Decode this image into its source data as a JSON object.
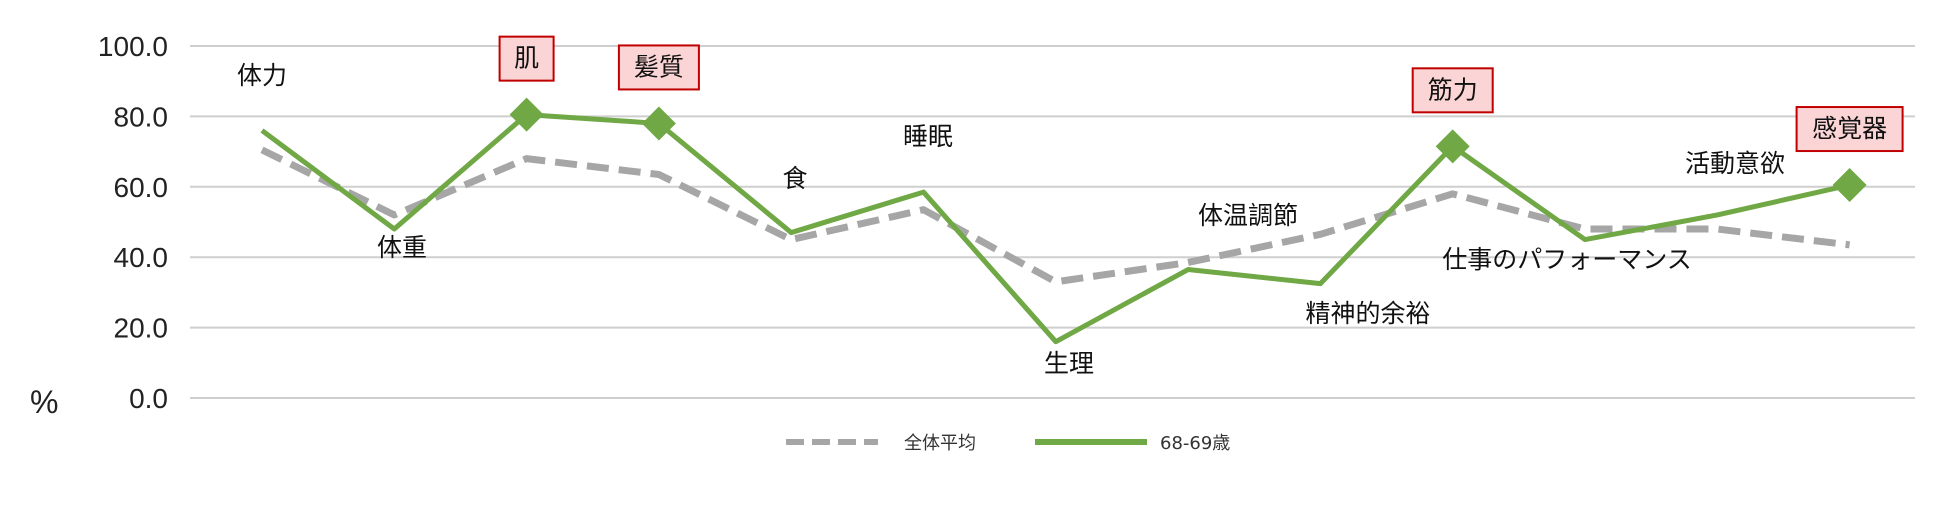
{
  "chart_data": {
    "type": "line",
    "ylabel": "%",
    "ylim": [
      0,
      100
    ],
    "y_ticks": [
      "0.0",
      "20.0",
      "40.0",
      "60.0",
      "80.0",
      "100.0"
    ],
    "grid": true,
    "legend_position": "bottom",
    "categories": [
      "体力",
      "体重",
      "肌",
      "髪質",
      "食",
      "睡眠",
      "生理",
      "体温調節",
      "精神的余裕",
      "筋力",
      "仕事のパフォーマンス",
      "活動意欲",
      "感覚器"
    ],
    "highlighted_categories": [
      "肌",
      "髪質",
      "筋力",
      "感覚器"
    ],
    "series": [
      {
        "name": "全体平均",
        "values": [
          70.5,
          52.0,
          68.0,
          63.5,
          45.0,
          53.5,
          33.0,
          38.5,
          46.5,
          58.0,
          48.0,
          48.0,
          43.5
        ],
        "color": "#a6a6a6",
        "style": "dashed"
      },
      {
        "name": "68-69歳",
        "values": [
          76.0,
          48.0,
          80.5,
          78.0,
          47.0,
          58.5,
          16.0,
          36.5,
          32.5,
          71.5,
          45.0,
          52.0,
          60.5
        ],
        "color": "#70a845",
        "style": "solid"
      }
    ]
  },
  "colors": {
    "grid": "#cfcfcf",
    "highlight_fill": "#fbd5d5",
    "highlight_border": "#c00000",
    "marker": "#70a845"
  }
}
